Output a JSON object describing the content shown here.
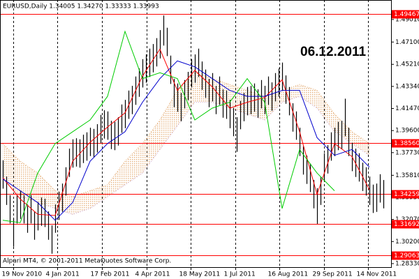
{
  "chart_data": {
    "type": "ohlc",
    "title": "EURUSD,Daily  1.34005 1.34270 1.33333 1.33993",
    "annotation": "06.12.2011",
    "footer": "Alpari MT4, © 2001-2011 MetaQuotes Software Corp.",
    "bar_color": "#000000",
    "high": [
      1.3708,
      1.357,
      1.3413,
      1.3216,
      1.3413,
      1.3452,
      1.3413,
      1.3334,
      1.3413,
      1.3275,
      1.3354,
      1.3393,
      1.3383,
      1.3275,
      1.3157,
      1.3334,
      1.3443,
      1.3511,
      1.3649,
      1.3807,
      1.3886,
      1.3895,
      1.3886,
      1.3925,
      1.3945,
      1.3984,
      1.3974,
      1.4014,
      1.4093,
      1.4132,
      1.4122,
      1.4043,
      1.4034,
      1.4073,
      1.4181,
      1.422,
      1.4299,
      1.4339,
      1.4418,
      1.4486,
      1.4565,
      1.4605,
      1.4654,
      1.4693,
      1.4743,
      1.4811,
      1.4935,
      1.4831,
      1.4595,
      1.4398,
      1.4359,
      1.4279,
      1.4388,
      1.4457,
      1.4565,
      1.4605,
      1.4654,
      1.4545,
      1.4477,
      1.4398,
      1.4447,
      1.4339,
      1.4418,
      1.4309,
      1.4299,
      1.422,
      1.4152,
      1.4073,
      1.4211,
      1.4279,
      1.4329,
      1.4339,
      1.4359,
      1.4309,
      1.4388,
      1.4339,
      1.4418,
      1.4368,
      1.4447,
      1.4486,
      1.4536,
      1.4427,
      1.4329,
      1.4191,
      1.4122,
      1.3984,
      1.3827,
      1.3748,
      1.3679,
      1.3541,
      1.3472,
      1.357,
      1.3768,
      1.3836,
      1.3945,
      1.3984,
      1.4034,
      1.4043,
      1.423,
      1.3984,
      1.3856,
      1.3807,
      1.3768,
      1.3688,
      1.3649,
      1.357,
      1.3502,
      1.3511,
      1.359,
      1.3541
    ],
    "low": [
      1.3468,
      1.333,
      1.3173,
      1.2976,
      1.3173,
      1.3212,
      1.3173,
      1.3094,
      1.3173,
      1.3035,
      1.3114,
      1.3153,
      1.3143,
      1.3035,
      1.2917,
      1.3094,
      1.3203,
      1.3271,
      1.3409,
      1.3567,
      1.3646,
      1.3655,
      1.3646,
      1.3685,
      1.3705,
      1.3744,
      1.3734,
      1.3774,
      1.3853,
      1.3892,
      1.3882,
      1.3803,
      1.3794,
      1.3833,
      1.3941,
      1.398,
      1.4059,
      1.4099,
      1.4178,
      1.4246,
      1.4325,
      1.4365,
      1.4414,
      1.4453,
      1.4503,
      1.4571,
      1.468,
      1.4591,
      1.4355,
      1.4158,
      1.4119,
      1.4039,
      1.4148,
      1.4217,
      1.4325,
      1.4365,
      1.4414,
      1.4305,
      1.4237,
      1.4158,
      1.4207,
      1.4099,
      1.4178,
      1.4069,
      1.4059,
      1.398,
      1.3912,
      1.378,
      1.3971,
      1.4039,
      1.4089,
      1.4099,
      1.4119,
      1.4069,
      1.4148,
      1.4099,
      1.4178,
      1.4128,
      1.4207,
      1.4246,
      1.4296,
      1.4187,
      1.4089,
      1.3951,
      1.3882,
      1.3744,
      1.3587,
      1.3508,
      1.3439,
      1.3301,
      1.317,
      1.333,
      1.3528,
      1.3596,
      1.3705,
      1.3744,
      1.3794,
      1.3803,
      1.3912,
      1.3744,
      1.3616,
      1.3567,
      1.3528,
      1.3448,
      1.3409,
      1.333,
      1.3262,
      1.3271,
      1.335,
      1.3301
    ],
    "lines": [
      {
        "color": "#ff0000",
        "x": [
          0,
          5,
          10,
          15,
          20,
          25,
          30,
          35,
          40,
          45,
          50,
          55,
          60,
          65,
          70,
          75,
          80,
          85,
          90,
          95,
          100,
          105
        ],
        "values": [
          1.356,
          1.338,
          1.325,
          1.324,
          1.37,
          1.386,
          1.399,
          1.411,
          1.442,
          1.465,
          1.43,
          1.447,
          1.433,
          1.415,
          1.42,
          1.424,
          1.439,
          1.395,
          1.342,
          1.385,
          1.374,
          1.346
        ]
      },
      {
        "color": "#0000cc",
        "x": [
          0,
          5,
          10,
          15,
          20,
          25,
          30,
          35,
          40,
          45,
          50,
          55,
          60,
          65,
          70,
          75,
          80,
          85,
          90,
          95,
          100,
          105
        ],
        "values": [
          1.355,
          1.345,
          1.335,
          1.32,
          1.335,
          1.37,
          1.385,
          1.395,
          1.42,
          1.44,
          1.455,
          1.45,
          1.44,
          1.43,
          1.425,
          1.425,
          1.43,
          1.43,
          1.39,
          1.375,
          1.38,
          1.365
        ]
      },
      {
        "color": "#00cc00",
        "x": [
          0,
          5,
          10,
          15,
          20,
          25,
          30,
          35,
          40,
          45,
          50,
          55,
          60,
          65,
          70,
          75,
          80,
          85,
          90,
          95
        ],
        "values": [
          1.32,
          1.318,
          1.36,
          1.385,
          1.395,
          1.405,
          1.425,
          1.48,
          1.44,
          1.445,
          1.44,
          1.405,
          1.415,
          1.42,
          1.44,
          1.42,
          1.33,
          1.38,
          1.36,
          1.345
        ]
      }
    ],
    "cloud": {
      "color": "#e0a060",
      "color_b": "#c8a0c8",
      "x": [
        0,
        5,
        10,
        15,
        20,
        25,
        30,
        35,
        40,
        45,
        50,
        55,
        60,
        65,
        70,
        75,
        80,
        85,
        90,
        95,
        100,
        105
      ],
      "span_a": [
        1.385,
        1.37,
        1.36,
        1.345,
        1.34,
        1.345,
        1.35,
        1.37,
        1.385,
        1.405,
        1.43,
        1.445,
        1.44,
        1.435,
        1.43,
        1.425,
        1.43,
        1.435,
        1.43,
        1.41,
        1.395,
        1.385
      ],
      "span_b": [
        1.355,
        1.34,
        1.335,
        1.33,
        1.325,
        1.33,
        1.34,
        1.35,
        1.36,
        1.38,
        1.4,
        1.42,
        1.42,
        1.415,
        1.41,
        1.405,
        1.42,
        1.425,
        1.415,
        1.395,
        1.385,
        1.375
      ]
    },
    "hlines": [
      {
        "value": 1.49467,
        "label": "1.49467"
      },
      {
        "value": 1.3856,
        "label": "1.38560"
      },
      {
        "value": 1.34259,
        "label": "1.34259"
      },
      {
        "value": 1.31692,
        "label": "1.31692"
      },
      {
        "value": 1.29063,
        "label": "1.29063"
      }
    ],
    "hline_color": "#ff0000",
    "ylim": [
      1.2803,
      1.5066
    ],
    "yticks": [
      {
        "value": 1.4901,
        "label": "1.49010"
      },
      {
        "value": 1.471,
        "label": "1.47100"
      },
      {
        "value": 1.4521,
        "label": "1.45210"
      },
      {
        "value": 1.4334,
        "label": "1.43340"
      },
      {
        "value": 1.4147,
        "label": "1.41470"
      },
      {
        "value": 1.396,
        "label": "1.39600"
      },
      {
        "value": 1.3773,
        "label": "1.37730"
      },
      {
        "value": 1.3581,
        "label": "1.35810"
      },
      {
        "value": 1.3395,
        "label": "1.33950"
      },
      {
        "value": 1.3207,
        "label": "1.32070"
      },
      {
        "value": 1.302,
        "label": "1.30200"
      },
      {
        "value": 1.2833,
        "label": "1.28330"
      }
    ],
    "xlim": [
      -0.8,
      111.2
    ],
    "xticks": [
      {
        "value": 3,
        "label": "19 Nov 2010"
      },
      {
        "value": 15.6,
        "label": "4 Jan 2011"
      },
      {
        "value": 28.4,
        "label": "17 Feb 2011"
      },
      {
        "value": 41.2,
        "label": "4 Apr 2011"
      },
      {
        "value": 53.8,
        "label": "18 May 2011"
      },
      {
        "value": 66.6,
        "label": "1 Jul 2011"
      },
      {
        "value": 79.2,
        "label": "16 Aug 2011"
      },
      {
        "value": 92,
        "label": "29 Sep 2011"
      },
      {
        "value": 104.6,
        "label": "14 Nov 2011"
      }
    ],
    "grid": true
  }
}
